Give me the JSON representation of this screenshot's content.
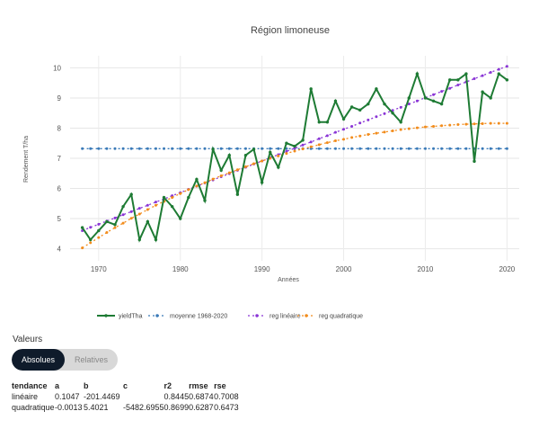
{
  "chart_data": {
    "type": "line",
    "title": "Région limoneuse",
    "xlabel": "Années",
    "ylabel": "Rendement T/ha",
    "xlim": [
      1966.5,
      2021.5
    ],
    "ylim": [
      3.6,
      10.4
    ],
    "xticks": [
      1970,
      1980,
      1990,
      2000,
      2010,
      2020
    ],
    "yticks": [
      4,
      5,
      6,
      7,
      8,
      9,
      10
    ],
    "grid": true,
    "legend_position": "bottom",
    "series": [
      {
        "name": "yieldTha",
        "color": "#1e7b34",
        "style": "solid",
        "x": [
          1968,
          1969,
          1970,
          1971,
          1972,
          1973,
          1974,
          1975,
          1976,
          1977,
          1978,
          1979,
          1980,
          1981,
          1982,
          1983,
          1984,
          1985,
          1986,
          1987,
          1988,
          1989,
          1990,
          1991,
          1992,
          1993,
          1994,
          1995,
          1996,
          1997,
          1998,
          1999,
          2000,
          2001,
          2002,
          2003,
          2004,
          2005,
          2006,
          2007,
          2008,
          2009,
          2010,
          2011,
          2012,
          2013,
          2014,
          2015,
          2016,
          2017,
          2018,
          2019,
          2020
        ],
        "y": [
          4.7,
          4.3,
          4.6,
          4.9,
          4.8,
          5.4,
          5.8,
          4.3,
          4.9,
          4.3,
          5.7,
          5.4,
          5.0,
          5.7,
          6.3,
          5.6,
          7.3,
          6.6,
          7.1,
          5.8,
          7.1,
          7.3,
          6.2,
          7.2,
          6.7,
          7.5,
          7.4,
          7.6,
          9.3,
          8.2,
          8.2,
          8.9,
          8.3,
          8.7,
          8.6,
          8.8,
          9.3,
          8.8,
          8.5,
          8.2,
          9.0,
          9.8,
          9.0,
          8.9,
          8.8,
          9.6,
          9.6,
          9.8,
          6.9,
          9.2,
          9.0,
          9.8,
          9.6
        ]
      },
      {
        "name": "moyenne 1968-2020",
        "color": "#3a7ab8",
        "style": "dashed",
        "x": [
          1968,
          1969,
          1970,
          1971,
          1972,
          1973,
          1974,
          1975,
          1976,
          1977,
          1978,
          1979,
          1980,
          1981,
          1982,
          1983,
          1984,
          1985,
          1986,
          1987,
          1988,
          1989,
          1990,
          1991,
          1992,
          1993,
          1994,
          1995,
          1996,
          1997,
          1998,
          1999,
          2000,
          2001,
          2002,
          2003,
          2004,
          2005,
          2006,
          2007,
          2008,
          2009,
          2010,
          2011,
          2012,
          2013,
          2014,
          2015,
          2016,
          2017,
          2018,
          2019,
          2020
        ],
        "y": [
          7.32,
          7.32,
          7.32,
          7.32,
          7.32,
          7.32,
          7.32,
          7.32,
          7.32,
          7.32,
          7.32,
          7.32,
          7.32,
          7.32,
          7.32,
          7.32,
          7.32,
          7.32,
          7.32,
          7.32,
          7.32,
          7.32,
          7.32,
          7.32,
          7.32,
          7.32,
          7.32,
          7.32,
          7.32,
          7.32,
          7.32,
          7.32,
          7.32,
          7.32,
          7.32,
          7.32,
          7.32,
          7.32,
          7.32,
          7.32,
          7.32,
          7.32,
          7.32,
          7.32,
          7.32,
          7.32,
          7.32,
          7.32,
          7.32,
          7.32,
          7.32,
          7.32,
          7.32
        ]
      },
      {
        "name": "reg linéaire",
        "color": "#8a35d6",
        "style": "dashed",
        "x": [
          1968,
          1969,
          1970,
          1971,
          1972,
          1973,
          1974,
          1975,
          1976,
          1977,
          1978,
          1979,
          1980,
          1981,
          1982,
          1983,
          1984,
          1985,
          1986,
          1987,
          1988,
          1989,
          1990,
          1991,
          1992,
          1993,
          1994,
          1995,
          1996,
          1997,
          1998,
          1999,
          2000,
          2001,
          2002,
          2003,
          2004,
          2005,
          2006,
          2007,
          2008,
          2009,
          2010,
          2011,
          2012,
          2013,
          2014,
          2015,
          2016,
          2017,
          2018,
          2019,
          2020
        ],
        "y": [
          4.6,
          4.71,
          4.81,
          4.92,
          5.02,
          5.13,
          5.23,
          5.34,
          5.44,
          5.55,
          5.65,
          5.76,
          5.86,
          5.97,
          6.07,
          6.18,
          6.28,
          6.39,
          6.49,
          6.6,
          6.7,
          6.81,
          6.91,
          7.02,
          7.12,
          7.23,
          7.33,
          7.44,
          7.54,
          7.65,
          7.75,
          7.86,
          7.96,
          8.06,
          8.17,
          8.27,
          8.38,
          8.48,
          8.59,
          8.69,
          8.8,
          8.9,
          9.01,
          9.11,
          9.22,
          9.32,
          9.43,
          9.53,
          9.64,
          9.74,
          9.85,
          9.95,
          10.05
        ]
      },
      {
        "name": "reg quadratique",
        "color": "#f28c1c",
        "style": "dashed",
        "x": [
          1968,
          1969,
          1970,
          1971,
          1972,
          1973,
          1974,
          1975,
          1976,
          1977,
          1978,
          1979,
          1980,
          1981,
          1982,
          1983,
          1984,
          1985,
          1986,
          1987,
          1988,
          1989,
          1990,
          1991,
          1992,
          1993,
          1994,
          1995,
          1996,
          1997,
          1998,
          1999,
          2000,
          2001,
          2002,
          2003,
          2004,
          2005,
          2006,
          2007,
          2008,
          2009,
          2010,
          2011,
          2012,
          2013,
          2014,
          2015,
          2016,
          2017,
          2018,
          2019,
          2020
        ],
        "y": [
          4.03,
          4.2,
          4.37,
          4.54,
          4.7,
          4.85,
          5.01,
          5.15,
          5.3,
          5.44,
          5.57,
          5.7,
          5.83,
          5.96,
          6.08,
          6.19,
          6.31,
          6.42,
          6.52,
          6.62,
          6.72,
          6.82,
          6.91,
          7.0,
          7.08,
          7.16,
          7.24,
          7.31,
          7.38,
          7.45,
          7.52,
          7.58,
          7.63,
          7.69,
          7.74,
          7.79,
          7.83,
          7.87,
          7.91,
          7.95,
          7.98,
          8.01,
          8.04,
          8.06,
          8.08,
          8.1,
          8.12,
          8.13,
          8.14,
          8.15,
          8.16,
          8.16,
          8.16
        ]
      }
    ]
  },
  "values_section": {
    "label": "Valeurs",
    "toggle": [
      "Absolues",
      "Relatives"
    ],
    "active": "Absolues"
  },
  "stats_table": {
    "headers": [
      "tendance",
      "a",
      "b",
      "c",
      "r2",
      "rmse",
      "rse"
    ],
    "rows": [
      [
        "linéaire",
        "0.1047",
        "-201.4469",
        "",
        "0.8445",
        "0.6874",
        "0.7008"
      ],
      [
        "quadratique",
        "-0.0013",
        "5.4021",
        "-5482.6955",
        "0.8699",
        "0.6287",
        "0.6473"
      ]
    ]
  }
}
